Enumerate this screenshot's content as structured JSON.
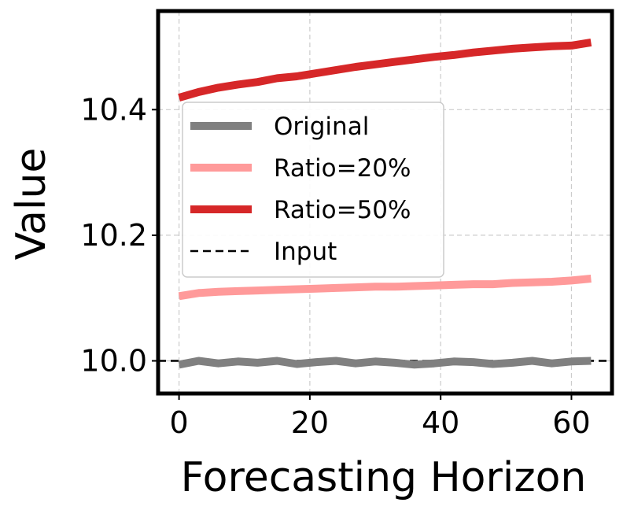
{
  "chart_data": {
    "type": "line",
    "xlabel": "Forecasting Horizon",
    "ylabel": "Value",
    "xlim": [
      -3.2,
      66.2
    ],
    "ylim": [
      9.948,
      10.557
    ],
    "xticks": [
      0,
      20,
      40,
      60
    ],
    "yticks": [
      10.0,
      10.2,
      10.4
    ],
    "ytick_labels": [
      "10.0",
      "10.2",
      "10.4"
    ],
    "grid": true,
    "legend_position": "upper-left",
    "series": [
      {
        "name": "Original",
        "color": "#808080",
        "style": "solid",
        "x": [
          0,
          3,
          6,
          9,
          12,
          15,
          18,
          21,
          24,
          27,
          30,
          33,
          36,
          39,
          42,
          45,
          48,
          51,
          54,
          57,
          60,
          63
        ],
        "values": [
          9.994,
          10.0,
          9.996,
          9.999,
          9.997,
          10.0,
          9.995,
          9.998,
          10.0,
          9.996,
          9.999,
          9.997,
          9.994,
          9.996,
          9.999,
          9.998,
          9.995,
          9.997,
          10.0,
          9.996,
          9.999,
          10.0
        ]
      },
      {
        "name": "Ratio=20%",
        "color": "#ff9a9a",
        "style": "solid",
        "x": [
          0,
          3,
          6,
          9,
          12,
          15,
          18,
          21,
          24,
          27,
          30,
          33,
          36,
          39,
          42,
          45,
          48,
          51,
          54,
          57,
          60,
          63
        ],
        "values": [
          10.103,
          10.108,
          10.11,
          10.111,
          10.112,
          10.113,
          10.114,
          10.115,
          10.116,
          10.117,
          10.118,
          10.118,
          10.119,
          10.12,
          10.121,
          10.122,
          10.122,
          10.124,
          10.125,
          10.126,
          10.128,
          10.131
        ]
      },
      {
        "name": "Ratio=50%",
        "color": "#d62728",
        "style": "solid",
        "x": [
          0,
          3,
          6,
          9,
          12,
          15,
          18,
          21,
          24,
          27,
          30,
          33,
          36,
          39,
          42,
          45,
          48,
          51,
          54,
          57,
          60,
          63
        ],
        "values": [
          10.419,
          10.428,
          10.435,
          10.44,
          10.444,
          10.45,
          10.453,
          10.458,
          10.463,
          10.468,
          10.472,
          10.476,
          10.48,
          10.484,
          10.487,
          10.491,
          10.494,
          10.497,
          10.499,
          10.501,
          10.502,
          10.507
        ]
      },
      {
        "name": "Input",
        "color": "#000000",
        "style": "dashed",
        "x": [
          -3.2,
          66.2
        ],
        "values": [
          10.0,
          10.0
        ]
      }
    ]
  }
}
